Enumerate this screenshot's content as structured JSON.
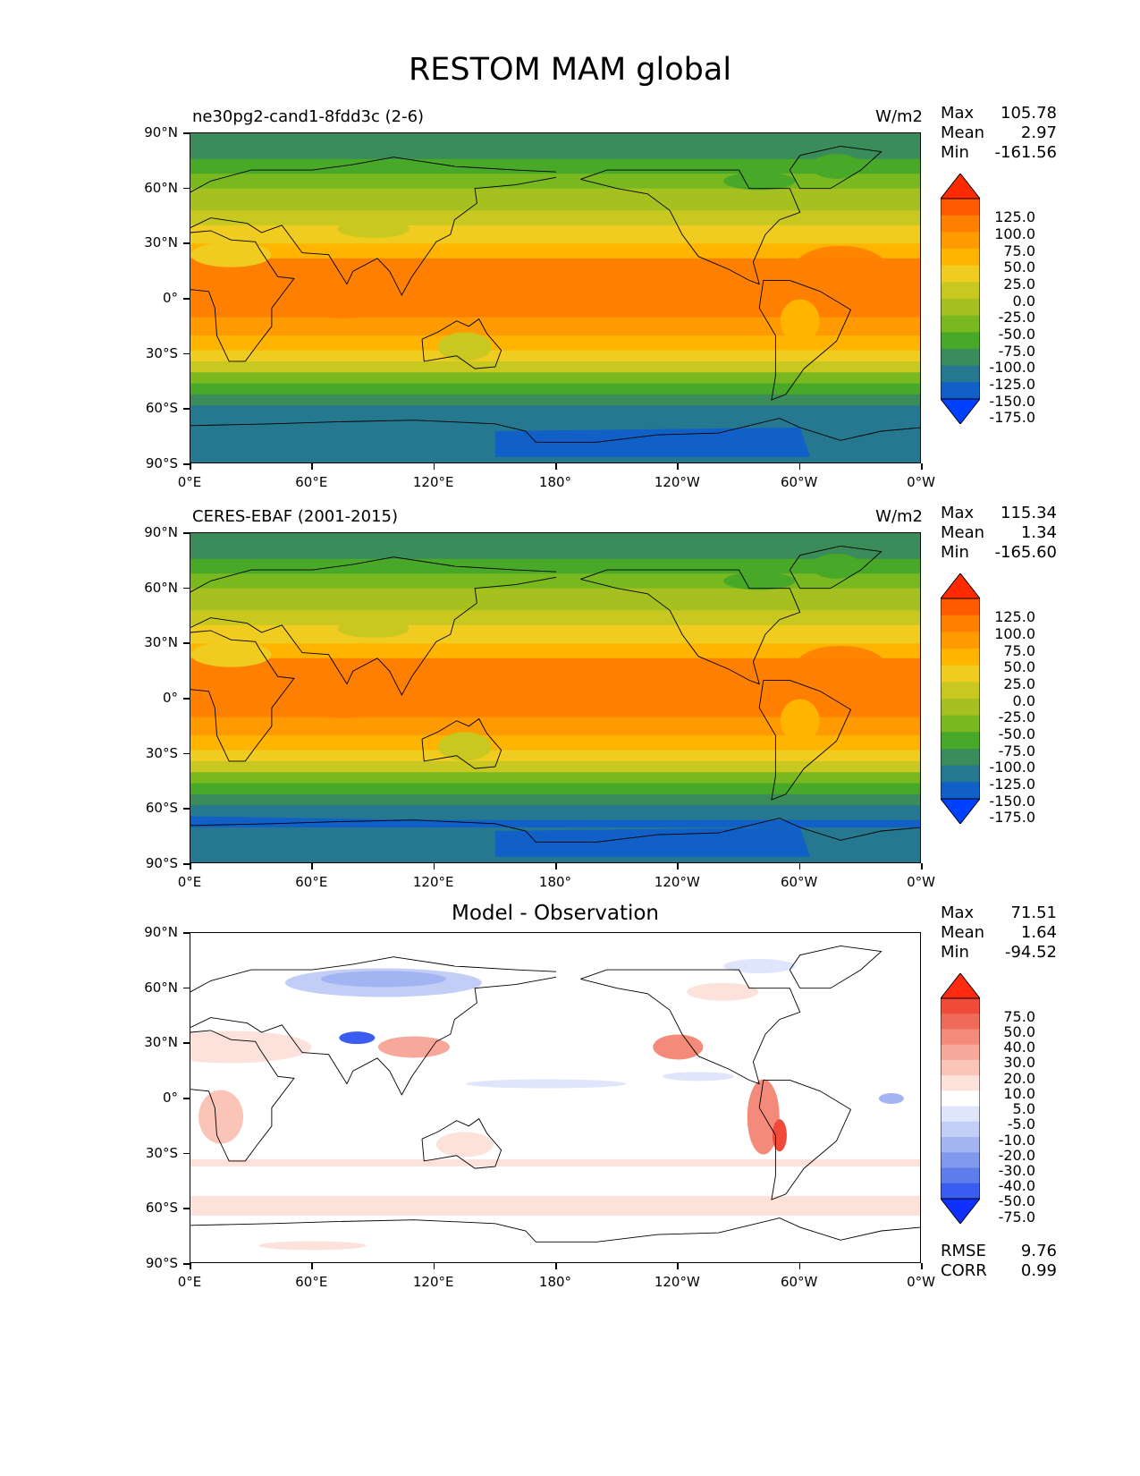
{
  "figure": {
    "title": "RESTOM MAM global"
  },
  "axes": {
    "y_ticks": [
      "90°N",
      "60°N",
      "30°N",
      "0°",
      "30°S",
      "60°S",
      "90°S"
    ],
    "x_ticks": [
      "0°E",
      "60°E",
      "120°E",
      "180°",
      "120°W",
      "60°W",
      "0°W"
    ]
  },
  "panels": [
    {
      "label_left": "ne30pg2-cand1-8fdd3c (2-6)",
      "label_right": "W/m2",
      "label_center": "",
      "stats": {
        "max_label": "Max",
        "max": "105.78",
        "mean_label": "Mean",
        "mean": "2.97",
        "min_label": "Min",
        "min": "-161.56"
      },
      "colorbar_labels": [
        "125.0",
        "100.0",
        "75.0",
        "50.0",
        "25.0",
        "0.0",
        "-25.0",
        "-50.0",
        "-75.0",
        "-100.0",
        "-125.0",
        "-150.0",
        "-175.0"
      ],
      "colorbar_colors": [
        "#ff2a00",
        "#ff5a00",
        "#ff8000",
        "#ff9a00",
        "#ffb400",
        "#f0cc20",
        "#c8c820",
        "#a6c020",
        "#7ab820",
        "#48a828",
        "#3a8c5a",
        "#257890",
        "#1060c8",
        "#0040ff"
      ]
    },
    {
      "label_left": "CERES-EBAF (2001-2015)",
      "label_right": "W/m2",
      "label_center": "",
      "stats": {
        "max_label": "Max",
        "max": "115.34",
        "mean_label": "Mean",
        "mean": "1.34",
        "min_label": "Min",
        "min": "-165.60"
      },
      "colorbar_labels": [
        "125.0",
        "100.0",
        "75.0",
        "50.0",
        "25.0",
        "0.0",
        "-25.0",
        "-50.0",
        "-75.0",
        "-100.0",
        "-125.0",
        "-150.0",
        "-175.0"
      ],
      "colorbar_colors": [
        "#ff2a00",
        "#ff5a00",
        "#ff8000",
        "#ff9a00",
        "#ffb400",
        "#f0cc20",
        "#c8c820",
        "#a6c020",
        "#7ab820",
        "#48a828",
        "#3a8c5a",
        "#257890",
        "#1060c8",
        "#0040ff"
      ]
    },
    {
      "label_left": "",
      "label_right": "",
      "label_center": "Model - Observation",
      "stats": {
        "max_label": "Max",
        "max": "71.51",
        "mean_label": "Mean",
        "mean": "1.64",
        "min_label": "Min",
        "min": "-94.52"
      },
      "colorbar_labels": [
        "75.0",
        "50.0",
        "40.0",
        "30.0",
        "20.0",
        "10.0",
        "5.0",
        "-5.0",
        "-10.0",
        "-20.0",
        "-30.0",
        "-40.0",
        "-50.0",
        "-75.0"
      ],
      "colorbar_colors": [
        "#ff2a10",
        "#f04a3a",
        "#f06a5a",
        "#f48a7a",
        "#f8a89a",
        "#fac4b8",
        "#fde2dc",
        "#ffffff",
        "#dfe6fb",
        "#c2cef6",
        "#a2b4f2",
        "#8098ee",
        "#5e7cea",
        "#3a5cf0",
        "#1030ff"
      ],
      "rmse_label": "RMSE",
      "rmse": "9.76",
      "corr_label": "CORR",
      "corr": "0.99"
    }
  ]
}
